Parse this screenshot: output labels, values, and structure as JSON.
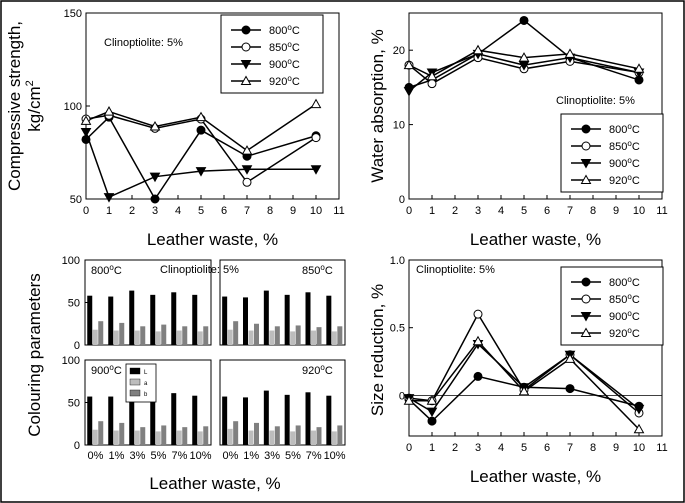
{
  "chart_data": [
    {
      "type": "line",
      "panel": "top-left",
      "annotation": "Clinoptiolite: 5%",
      "xlabel": "Leather waste, %",
      "ylabel_line1": "Compressive strength,",
      "ylabel_line2": "kg/cm",
      "ylabel_sup": "2",
      "xlim": [
        0,
        11
      ],
      "ylim": [
        50,
        150
      ],
      "xticks": [
        "0",
        "1",
        "2",
        "3",
        "4",
        "5",
        "6",
        "7",
        "8",
        "9",
        "10",
        "11"
      ],
      "yticks": [
        "50",
        "100",
        "150"
      ],
      "legend_position": "top-right",
      "x": [
        0,
        1,
        3,
        5,
        7,
        10
      ],
      "series": [
        {
          "name": "800°C",
          "marker": "circle-filled",
          "values": [
            82,
            94,
            50,
            87,
            73,
            84
          ]
        },
        {
          "name": "850°C",
          "marker": "circle-open",
          "values": [
            93,
            95,
            88,
            93,
            59,
            83
          ]
        },
        {
          "name": "900°C",
          "marker": "triangle-down-filled",
          "values": [
            86,
            51,
            62,
            65,
            66,
            66
          ]
        },
        {
          "name": "920°C",
          "marker": "triangle-up-open",
          "values": [
            92,
            97,
            89,
            94,
            76,
            101
          ]
        }
      ]
    },
    {
      "type": "line",
      "panel": "top-right",
      "annotation": "Clinoptiolite: 5%",
      "xlabel": "Leather waste, %",
      "ylabel": "Water absorption, %",
      "xlim": [
        0,
        11
      ],
      "ylim": [
        0,
        25
      ],
      "xticks": [
        "0",
        "1",
        "2",
        "3",
        "4",
        "5",
        "6",
        "7",
        "8",
        "9",
        "10",
        "11"
      ],
      "yticks": [
        "0",
        "10",
        "20"
      ],
      "legend_position": "bottom-right",
      "x": [
        0,
        1,
        3,
        5,
        7,
        10
      ],
      "series": [
        {
          "name": "800°C",
          "marker": "circle-filled",
          "values": [
            15,
            16,
            19.5,
            24,
            19,
            16
          ]
        },
        {
          "name": "850°C",
          "marker": "circle-open",
          "values": [
            18,
            15.5,
            19,
            17.5,
            18.5,
            17
          ]
        },
        {
          "name": "900°C",
          "marker": "triangle-down-filled",
          "values": [
            14.5,
            17,
            19.5,
            18,
            19,
            17
          ]
        },
        {
          "name": "920°C",
          "marker": "triangle-up-open",
          "values": [
            18,
            16.5,
            20,
            19,
            19.5,
            17.5
          ]
        }
      ]
    },
    {
      "type": "bar",
      "panel": "bottom-left",
      "annotation": "Clinoptiolite: 5%",
      "xlabel": "Leather waste, %",
      "ylabel": "Colouring parameters",
      "ylim": [
        0,
        100
      ],
      "yticks": [
        "0",
        "50",
        "100"
      ],
      "categories": [
        "0%",
        "1%",
        "3%",
        "5%",
        "7%",
        "10%"
      ],
      "legend": [
        "L",
        "a",
        "b"
      ],
      "legend_position": "top-left of lower-left subplot",
      "subplots": [
        {
          "label": "800°C",
          "L": [
            58,
            57,
            64,
            59,
            62,
            59
          ],
          "a": [
            18,
            17,
            17,
            16,
            17,
            16
          ],
          "b": [
            28,
            26,
            22,
            24,
            22,
            22
          ]
        },
        {
          "label": "850°C",
          "L": [
            57,
            56,
            64,
            59,
            62,
            58
          ],
          "a": [
            18,
            17,
            17,
            16,
            17,
            16
          ],
          "b": [
            28,
            25,
            22,
            23,
            21,
            22
          ]
        },
        {
          "label": "900°C",
          "L": [
            57,
            57,
            64,
            58,
            61,
            58
          ],
          "a": [
            18,
            17,
            17,
            16,
            17,
            16
          ],
          "b": [
            28,
            26,
            21,
            23,
            21,
            22
          ]
        },
        {
          "label": "920°C",
          "L": [
            57,
            56,
            64,
            59,
            62,
            58
          ],
          "a": [
            19,
            17,
            17,
            16,
            17,
            16
          ],
          "b": [
            28,
            26,
            22,
            23,
            21,
            23
          ]
        }
      ]
    },
    {
      "type": "line",
      "panel": "bottom-right",
      "annotation": "Clinoptiolite: 5%",
      "xlabel": "Leather waste, %",
      "ylabel": "Size reduction, %",
      "xlim": [
        0,
        11
      ],
      "ylim": [
        -0.3,
        1.0
      ],
      "xticks": [
        "0",
        "1",
        "2",
        "3",
        "4",
        "5",
        "6",
        "7",
        "8",
        "9",
        "10",
        "11"
      ],
      "yticks": [
        "0",
        "0.5",
        "1.0"
      ],
      "legend_position": "top-right",
      "x": [
        0,
        1,
        3,
        5,
        7,
        10
      ],
      "series": [
        {
          "name": "800°C",
          "marker": "circle-filled",
          "values": [
            -0.03,
            -0.19,
            0.14,
            0.06,
            0.05,
            -0.08
          ]
        },
        {
          "name": "850°C",
          "marker": "circle-open",
          "values": [
            -0.02,
            -0.04,
            0.6,
            0.04,
            0.3,
            -0.13
          ]
        },
        {
          "name": "900°C",
          "marker": "triangle-down-filled",
          "values": [
            -0.02,
            -0.12,
            0.38,
            0.06,
            0.3,
            -0.1
          ]
        },
        {
          "name": "920°C",
          "marker": "triangle-up-open",
          "values": [
            -0.04,
            -0.04,
            0.4,
            0.03,
            0.27,
            -0.25
          ]
        }
      ]
    }
  ]
}
